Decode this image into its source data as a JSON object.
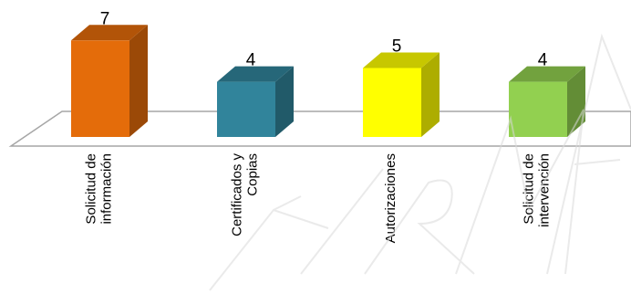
{
  "watermark": "FIRMA",
  "chart_data": {
    "type": "bar",
    "categories": [
      [
        "Solicitud de",
        "información"
      ],
      [
        "Certificados y",
        "Copias"
      ],
      [
        "Autorizaciones"
      ],
      [
        "Solicitud de",
        "intervención"
      ]
    ],
    "values": [
      7,
      4,
      5,
      4
    ],
    "value_labels": [
      "7",
      "4",
      "5",
      "4"
    ],
    "colors": [
      "#e46c0a",
      "#31849b",
      "#ffff00",
      "#92d050"
    ],
    "ylim": [
      0,
      7
    ],
    "grid": false,
    "legend": "none",
    "three_d": true
  }
}
